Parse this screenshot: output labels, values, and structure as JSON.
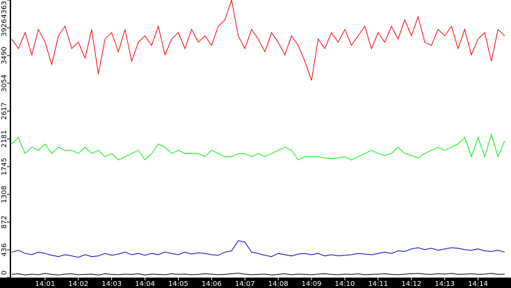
{
  "chart_data": {
    "type": "line",
    "x": [
      0,
      0.2,
      0.4,
      0.6,
      0.8,
      1,
      1.2,
      1.4,
      1.6,
      1.8,
      2,
      2.2,
      2.4,
      2.6,
      2.8,
      3,
      3.2,
      3.4,
      3.6,
      3.8,
      4,
      4.2,
      4.4,
      4.6,
      4.8,
      5,
      5.2,
      5.4,
      5.6,
      5.8,
      6,
      6.2,
      6.4,
      6.6,
      6.8,
      7,
      7.2,
      7.4,
      7.6,
      7.8,
      8,
      8.2,
      8.4,
      8.6,
      8.8,
      9,
      9.2,
      9.4,
      9.6,
      9.8,
      10,
      10.2,
      10.4,
      10.6,
      10.8,
      11,
      11.2,
      11.4,
      11.6,
      11.8,
      12,
      12.2,
      12.4,
      12.6,
      12.8,
      13,
      13.2,
      13.4,
      13.6,
      13.8,
      14,
      14.2,
      14.4,
      14.6,
      14.8
    ],
    "series": [
      {
        "color": "#ff0000",
        "values": [
          3750,
          3600,
          3850,
          3500,
          3900,
          3700,
          3350,
          3800,
          3950,
          3600,
          3700,
          3450,
          3900,
          3200,
          3750,
          3850,
          3550,
          3900,
          3400,
          3700,
          3800,
          3650,
          3950,
          3500,
          3750,
          3850,
          3600,
          3900,
          3700,
          3800,
          3650,
          3950,
          4050,
          4363,
          3800,
          3600,
          3900,
          3750,
          3550,
          3850,
          3700,
          3500,
          3800,
          3650,
          3400,
          3100,
          3750,
          3600,
          3850,
          3700,
          3900,
          3650,
          3800,
          3950,
          3600,
          3850,
          3700,
          3950,
          3750,
          4050,
          3800,
          4100,
          3700,
          3650,
          3900,
          3800,
          3950,
          3600,
          3900,
          3500,
          3750,
          3850,
          3400,
          3900,
          3800
        ]
      },
      {
        "color": "#00ee00",
        "values": [
          2100,
          2200,
          1950,
          2050,
          2000,
          2100,
          1950,
          2050,
          2000,
          2000,
          1950,
          2050,
          1950,
          2000,
          1900,
          1950,
          1850,
          1900,
          1950,
          2000,
          1850,
          1950,
          2100,
          2050,
          1950,
          2000,
          1950,
          1950,
          1950,
          1900,
          2000,
          1950,
          1900,
          1900,
          1950,
          1950,
          1900,
          1950,
          1900,
          1950,
          2000,
          2050,
          2000,
          1850,
          1900,
          1900,
          1900,
          1880,
          1870,
          1880,
          1900,
          1850,
          1900,
          1950,
          2000,
          1950,
          1920,
          1950,
          2050,
          1950,
          1920,
          1880,
          1950,
          2000,
          2050,
          2000,
          2050,
          2100,
          2200,
          1900,
          2200,
          1900,
          2250,
          1900,
          2150
        ]
      },
      {
        "color": "#0000b0",
        "values": [
          400,
          430,
          380,
          360,
          400,
          380,
          350,
          330,
          360,
          340,
          320,
          360,
          330,
          340,
          380,
          350,
          370,
          400,
          360,
          380,
          350,
          380,
          360,
          400,
          380,
          360,
          400,
          370,
          390,
          380,
          360,
          350,
          400,
          420,
          580,
          560,
          400,
          380,
          350,
          330,
          380,
          360,
          340,
          370,
          380,
          360,
          380,
          340,
          360,
          340,
          350,
          360,
          380,
          370,
          360,
          380,
          400,
          380,
          420,
          410,
          450,
          470,
          440,
          460,
          430,
          450,
          470,
          460,
          440,
          430,
          450,
          420,
          410,
          430,
          400
        ]
      },
      {
        "color": "#000000",
        "values": [
          50,
          60,
          40,
          55,
          45,
          65,
          50,
          40,
          55,
          60,
          45,
          50,
          55,
          40,
          60,
          50,
          45,
          55,
          50,
          60,
          40,
          55,
          50,
          45,
          60,
          50,
          55,
          45,
          50,
          60,
          55,
          45,
          50,
          60,
          70,
          55,
          45,
          50,
          55,
          40,
          50,
          60,
          45,
          55,
          50,
          45,
          55,
          60,
          50,
          45,
          55,
          50,
          60,
          45,
          50,
          55,
          60,
          50,
          45,
          55,
          60,
          65,
          55,
          50,
          60,
          55,
          65,
          50,
          55,
          60,
          50,
          55,
          65,
          50,
          55
        ]
      }
    ],
    "xlim": [
      -0.04,
      14.99
    ],
    "xticks": [
      {
        "value": 1,
        "label": "14:01"
      },
      {
        "value": 2,
        "label": "14:02"
      },
      {
        "value": 3,
        "label": "14:03"
      },
      {
        "value": 4,
        "label": "14:04"
      },
      {
        "value": 5,
        "label": "14:05"
      },
      {
        "value": 6,
        "label": "14:06"
      },
      {
        "value": 7,
        "label": "14:07"
      },
      {
        "value": 8,
        "label": "14:08"
      },
      {
        "value": 9,
        "label": "14:09"
      },
      {
        "value": 10,
        "label": "14:10"
      },
      {
        "value": 11,
        "label": "14:11"
      },
      {
        "value": 12,
        "label": "14:12"
      },
      {
        "value": 13,
        "label": "14:13"
      },
      {
        "value": 14,
        "label": "14:14"
      }
    ],
    "ylim": [
      0,
      4363
    ],
    "yticks": [
      0,
      436,
      872,
      1308,
      1745,
      2181,
      2617,
      3054,
      3490,
      3926,
      4363
    ]
  }
}
